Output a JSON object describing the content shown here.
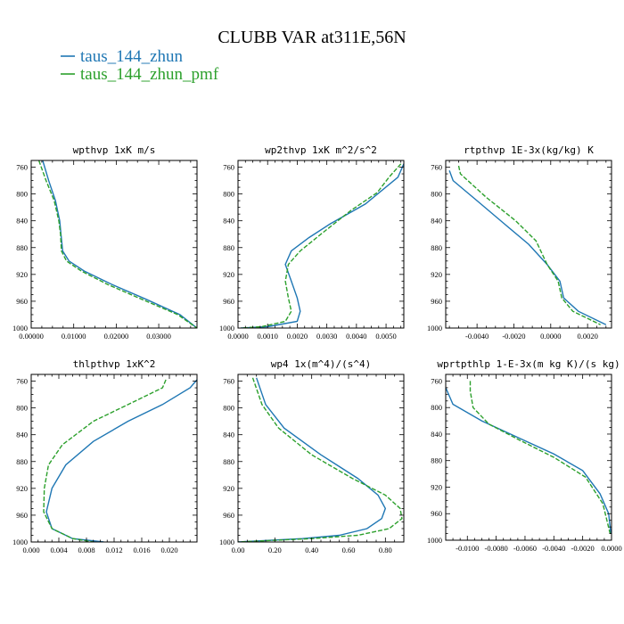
{
  "title": "CLUBB VAR at311E,56N",
  "legend": [
    {
      "label": "taus_144_zhun",
      "color": "#1f77b4",
      "dash": "solid"
    },
    {
      "label": "taus_144_zhun_pmf",
      "color": "#2ca02c",
      "dash": "dashed"
    }
  ],
  "chart_data": [
    {
      "type": "line",
      "title": "wpthvp  1xK m/s",
      "xlim": [
        0,
        0.039
      ],
      "ylim": [
        1000,
        750
      ],
      "y_reversed": true,
      "xticks": [
        0,
        0.01,
        0.02,
        0.03
      ],
      "xtick_labels": [
        "0.00000",
        "0.01000",
        "0.02000",
        "0.03000"
      ],
      "yticks": [
        760,
        800,
        840,
        880,
        920,
        960,
        1000
      ],
      "series": [
        {
          "name": "taus_144_zhun",
          "x": [
            0.0027,
            0.0041,
            0.0057,
            0.0067,
            0.007,
            0.0074,
            0.0089,
            0.0125,
            0.019,
            0.027,
            0.035,
            0.039
          ],
          "y": [
            750,
            780,
            810,
            840,
            860,
            885,
            900,
            915,
            935,
            957,
            980,
            1000
          ]
        },
        {
          "name": "taus_144_zhun_pmf",
          "x": [
            0.0018,
            0.0035,
            0.0054,
            0.0065,
            0.0069,
            0.0071,
            0.0083,
            0.0118,
            0.018,
            0.026,
            0.0345,
            0.039
          ],
          "y": [
            750,
            780,
            810,
            840,
            860,
            885,
            900,
            915,
            935,
            957,
            980,
            1000
          ]
        }
      ]
    },
    {
      "type": "line",
      "title": "wp2thvp  1xK m^2/s^2",
      "xlim": [
        0,
        0.0056
      ],
      "ylim": [
        1000,
        750
      ],
      "y_reversed": true,
      "xticks": [
        0,
        0.001,
        0.002,
        0.003,
        0.004,
        0.005
      ],
      "xtick_labels": [
        "0.0000",
        "0.0010",
        "0.0020",
        "0.0030",
        "0.0040",
        "0.0050"
      ],
      "yticks": [
        760,
        800,
        840,
        880,
        920,
        960,
        1000
      ],
      "series": [
        {
          "name": "taus_144_zhun",
          "x": [
            0.0056,
            0.0054,
            0.0043,
            0.0031,
            0.0024,
            0.0018,
            0.0016,
            0.0018,
            0.002,
            0.0021,
            0.002,
            0.001,
            0.0001
          ],
          "y": [
            755,
            775,
            815,
            845,
            865,
            885,
            905,
            930,
            955,
            975,
            990,
            998,
            1000
          ]
        },
        {
          "name": "taus_144_zhun_pmf",
          "x": [
            0.0055,
            0.0051,
            0.0047,
            0.0038,
            0.0028,
            0.0021,
            0.0017,
            0.0016,
            0.0017,
            0.0018,
            0.0016,
            0.0008,
            0.0001
          ],
          "y": [
            755,
            775,
            798,
            825,
            860,
            885,
            905,
            930,
            955,
            975,
            990,
            998,
            1000
          ]
        }
      ]
    },
    {
      "type": "line",
      "title": "rtpthvp  1E-3x(kg/kg) K",
      "xlim": [
        -0.0057,
        0.0033
      ],
      "ylim": [
        1000,
        750
      ],
      "y_reversed": true,
      "xticks": [
        -0.004,
        -0.002,
        0,
        0.002
      ],
      "xtick_labels": [
        "-0.0040",
        "-0.0020",
        "0.0000",
        "0.0020"
      ],
      "yticks": [
        760,
        800,
        840,
        880,
        920,
        960,
        1000
      ],
      "series": [
        {
          "name": "taus_144_zhun",
          "x": [
            -0.0055,
            -0.0053,
            -0.004,
            -0.0025,
            -0.0012,
            -0.0002,
            0.0005,
            0.0007,
            0.0015,
            0.003
          ],
          "y": [
            765,
            780,
            810,
            845,
            875,
            905,
            930,
            955,
            975,
            995
          ]
        },
        {
          "name": "taus_144_zhun_pmf",
          "x": [
            -0.005,
            -0.0049,
            -0.0035,
            -0.0019,
            -0.0008,
            -0.0002,
            0.0004,
            0.0006,
            0.0012,
            0.0027
          ],
          "y": [
            758,
            770,
            805,
            840,
            870,
            905,
            930,
            955,
            975,
            995
          ]
        }
      ]
    },
    {
      "type": "line",
      "title": "thlpthvp  1xK^2",
      "xlim": [
        0,
        0.024
      ],
      "ylim": [
        1000,
        750
      ],
      "y_reversed": true,
      "xticks": [
        0,
        0.004,
        0.008,
        0.012,
        0.016,
        0.02
      ],
      "xtick_labels": [
        "0.000",
        "0.004",
        "0.008",
        "0.012",
        "0.016",
        "0.020"
      ],
      "yticks": [
        760,
        800,
        840,
        880,
        920,
        960,
        1000
      ],
      "series": [
        {
          "name": "taus_144_zhun",
          "x": [
            0.024,
            0.023,
            0.019,
            0.014,
            0.009,
            0.005,
            0.003,
            0.0022,
            0.003,
            0.006,
            0.0105
          ],
          "y": [
            758,
            770,
            795,
            820,
            850,
            885,
            920,
            955,
            980,
            995,
            1000
          ]
        },
        {
          "name": "taus_144_zhun_pmf",
          "x": [
            0.0195,
            0.019,
            0.015,
            0.009,
            0.0045,
            0.0025,
            0.0019,
            0.0018,
            0.003,
            0.006,
            0.009
          ],
          "y": [
            758,
            770,
            790,
            820,
            855,
            885,
            920,
            955,
            980,
            995,
            1000
          ]
        }
      ]
    },
    {
      "type": "line",
      "title": "wp4  1x(m^4)/(s^4)",
      "xlim": [
        0,
        0.9
      ],
      "ylim": [
        1000,
        750
      ],
      "y_reversed": true,
      "xticks": [
        0,
        0.2,
        0.4,
        0.6,
        0.8
      ],
      "xtick_labels": [
        "0.00",
        "0.20",
        "0.40",
        "0.60",
        "0.80"
      ],
      "yticks": [
        760,
        800,
        840,
        880,
        920,
        960,
        1000
      ],
      "series": [
        {
          "name": "taus_144_zhun",
          "x": [
            0.1,
            0.15,
            0.25,
            0.45,
            0.65,
            0.76,
            0.8,
            0.78,
            0.7,
            0.55,
            0.35,
            0.0
          ],
          "y": [
            755,
            795,
            830,
            870,
            905,
            930,
            950,
            965,
            980,
            990,
            995,
            1000
          ]
        },
        {
          "name": "taus_144_zhun_pmf",
          "x": [
            0.08,
            0.13,
            0.22,
            0.4,
            0.62,
            0.8,
            0.88,
            0.89,
            0.82,
            0.65,
            0.4,
            0.0
          ],
          "y": [
            755,
            795,
            830,
            870,
            905,
            930,
            950,
            965,
            980,
            990,
            995,
            1000
          ]
        }
      ]
    },
    {
      "type": "line",
      "title": "wprtpthlp  1-E-3x(m kg K)/(s kg)",
      "xlim": [
        -0.0115,
        0
      ],
      "ylim": [
        1000,
        750
      ],
      "y_reversed": true,
      "xticks": [
        -0.01,
        -0.008,
        -0.006,
        -0.004,
        -0.002,
        0
      ],
      "xtick_labels": [
        "-0.0100",
        "-0.0080",
        "-0.0060",
        "-0.0040",
        "-0.0020",
        "0.0000"
      ],
      "yticks": [
        760,
        800,
        840,
        880,
        920,
        960,
        1000
      ],
      "series": [
        {
          "name": "taus_144_zhun",
          "x": [
            -0.0115,
            -0.011,
            -0.009,
            -0.0065,
            -0.004,
            -0.002,
            -0.0008,
            -0.0002,
            -5e-05
          ],
          "y": [
            770,
            795,
            820,
            845,
            870,
            895,
            930,
            960,
            990
          ]
        },
        {
          "name": "taus_144_zhun_pmf",
          "x": [
            -0.0098,
            -0.0098,
            -0.0096,
            -0.0085,
            -0.0063,
            -0.004,
            -0.0018,
            -0.0006,
            -0.0001
          ],
          "y": [
            760,
            775,
            800,
            825,
            850,
            875,
            905,
            945,
            990
          ]
        }
      ]
    }
  ]
}
